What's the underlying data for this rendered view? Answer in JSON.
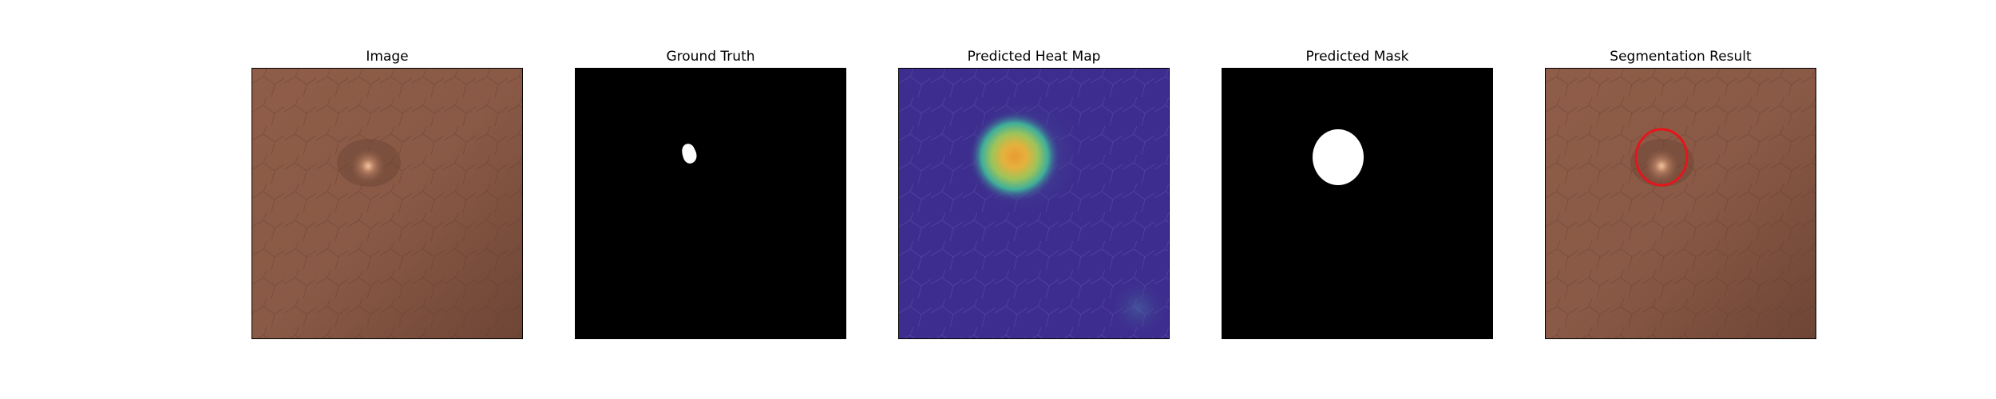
{
  "figure": {
    "panels": [
      {
        "id": "image",
        "title": "Image",
        "icon": "leather-texture-image"
      },
      {
        "id": "ground_truth",
        "title": "Ground Truth",
        "icon": "binary-mask-image"
      },
      {
        "id": "heat_map",
        "title": "Predicted Heat Map",
        "icon": "heatmap-image"
      },
      {
        "id": "pred_mask",
        "title": "Predicted Mask",
        "icon": "binary-mask-image"
      },
      {
        "id": "segmentation",
        "title": "Segmentation Result",
        "icon": "overlay-image"
      }
    ],
    "colors": {
      "leather_base": "#8a5a46",
      "leather_dark": "#6e4536",
      "mask_background": "#000000",
      "mask_foreground": "#ffffff",
      "heatmap_low": "#3b2a8c",
      "heatmap_mid": "#3fae9a",
      "heatmap_high": "#f2b23a",
      "contour": "#e6141b"
    }
  }
}
